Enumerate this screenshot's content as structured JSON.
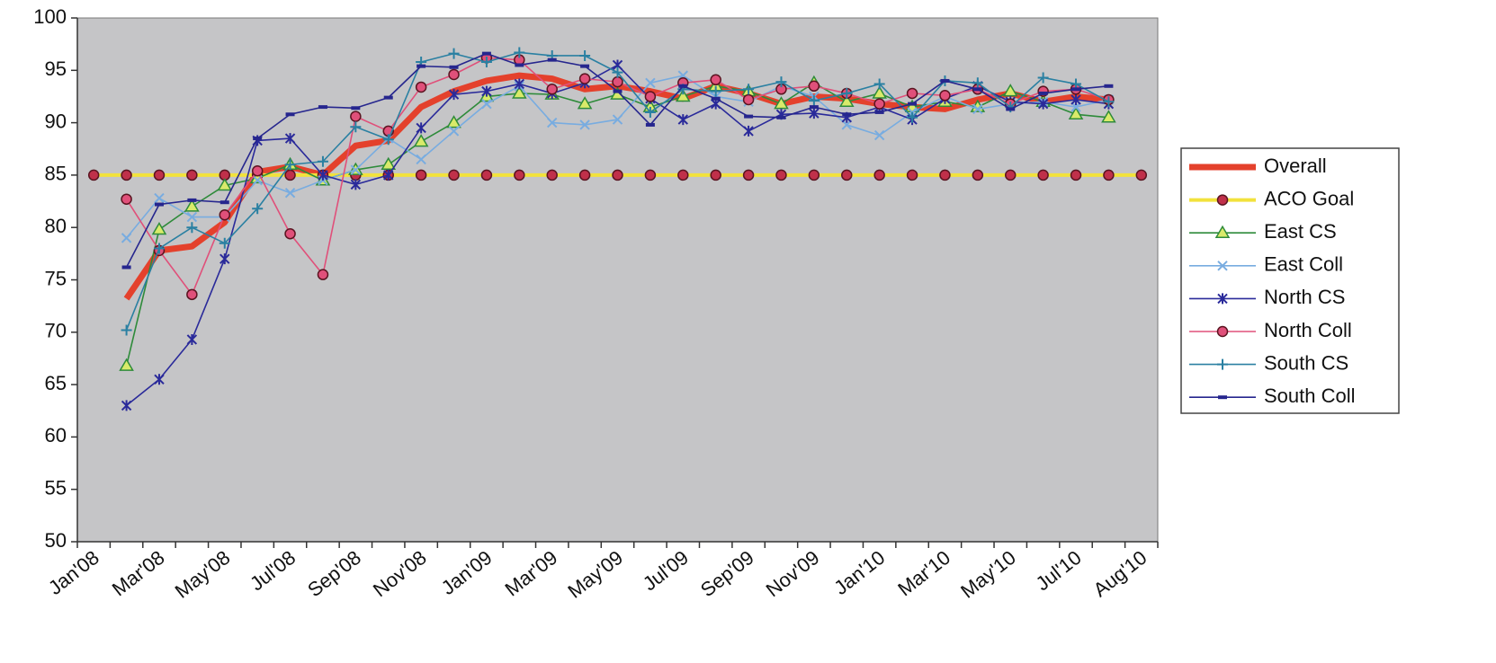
{
  "chart_data": {
    "type": "line",
    "categories": [
      "Jan'08",
      null,
      "Mar'08",
      null,
      "May'08",
      null,
      "Jul'08",
      null,
      "Sep'08",
      null,
      "Nov'08",
      null,
      "Jan'09",
      null,
      "Mar'09",
      null,
      "May'09",
      null,
      "Jul'09",
      null,
      "Sep'09",
      null,
      "Nov'09",
      null,
      "Jan'10",
      null,
      "Mar'10",
      null,
      "May'10",
      null,
      "Jul'10",
      null,
      "Aug'10"
    ],
    "ylim": [
      50,
      100
    ],
    "yticks": [
      50,
      55,
      60,
      65,
      70,
      75,
      80,
      85,
      90,
      95,
      100
    ],
    "legend": "right",
    "series": [
      {
        "name": "Overall",
        "color": "#e4412c",
        "marker": "none",
        "values": [
          null,
          73.2,
          77.8,
          78.2,
          80.5,
          85.3,
          85.8,
          85.0,
          87.8,
          88.3,
          91.5,
          93.0,
          94.0,
          94.5,
          94.2,
          93.2,
          93.5,
          93.0,
          92.3,
          93.5,
          92.8,
          91.8,
          92.5,
          92.3,
          91.8,
          91.5,
          91.3,
          92.2,
          92.8,
          92.0,
          92.5,
          92.2,
          null
        ]
      },
      {
        "name": "ACO Goal",
        "color": "#f2e23c",
        "marker": "circle",
        "values": [
          85,
          85,
          85,
          85,
          85,
          85,
          85,
          85,
          85,
          85,
          85,
          85,
          85,
          85,
          85,
          85,
          85,
          85,
          85,
          85,
          85,
          85,
          85,
          85,
          85,
          85,
          85,
          85,
          85,
          85,
          85,
          85,
          85
        ]
      },
      {
        "name": "East CS",
        "color": "#2e8b3a",
        "marker": "triangle",
        "values": [
          null,
          66.8,
          79.8,
          82.0,
          84.0,
          84.7,
          86.0,
          84.5,
          85.5,
          86.0,
          88.2,
          90.0,
          92.5,
          92.8,
          92.7,
          91.8,
          92.7,
          91.5,
          92.5,
          93.5,
          93.0,
          91.8,
          93.8,
          92.0,
          92.8,
          91.5,
          92.0,
          91.5,
          93.0,
          92.0,
          90.8,
          90.5,
          null
        ]
      },
      {
        "name": "East Coll",
        "color": "#78ace0",
        "marker": "x",
        "values": [
          null,
          79.0,
          82.8,
          81.0,
          81.0,
          84.5,
          83.3,
          84.5,
          85.5,
          88.5,
          86.5,
          89.2,
          91.8,
          93.5,
          90.0,
          89.8,
          90.3,
          93.8,
          94.5,
          92.5,
          92.0,
          93.5,
          92.5,
          89.8,
          88.8,
          91.0,
          92.5,
          91.3,
          91.8,
          92.0,
          91.5,
          92.2,
          null
        ]
      },
      {
        "name": "North CS",
        "color": "#2a2a9a",
        "marker": "star",
        "values": [
          null,
          63.0,
          65.5,
          69.3,
          77.0,
          88.3,
          88.5,
          85.0,
          84.1,
          85.0,
          89.5,
          92.7,
          93.0,
          93.7,
          92.8,
          93.8,
          95.5,
          92.3,
          90.3,
          91.8,
          89.2,
          90.8,
          90.9,
          90.5,
          91.5,
          90.3,
          92.3,
          93.5,
          92.0,
          91.8,
          92.2,
          91.8,
          null
        ]
      },
      {
        "name": "North Coll",
        "color": "#e0507a",
        "marker": "circle",
        "values": [
          null,
          82.7,
          77.8,
          73.6,
          81.2,
          85.4,
          79.4,
          75.5,
          90.6,
          89.2,
          93.4,
          94.6,
          96.2,
          96.0,
          93.2,
          94.2,
          93.9,
          92.5,
          93.8,
          94.1,
          92.2,
          93.2,
          93.5,
          92.8,
          91.8,
          92.8,
          92.6,
          93.2,
          91.8,
          93.0,
          93.2,
          92.2,
          null
        ]
      },
      {
        "name": "South CS",
        "color": "#2a80a2",
        "marker": "plus",
        "values": [
          null,
          70.2,
          78.0,
          80.0,
          78.5,
          81.8,
          86.0,
          86.3,
          89.6,
          88.4,
          95.8,
          96.6,
          95.8,
          96.7,
          96.4,
          96.4,
          94.8,
          91.0,
          93.2,
          93.0,
          93.2,
          93.9,
          92.1,
          92.8,
          93.7,
          90.5,
          94.0,
          93.8,
          91.5,
          94.3,
          93.7,
          92.0,
          null
        ]
      },
      {
        "name": "South Coll",
        "color": "#26268e",
        "marker": "dash",
        "values": [
          null,
          76.2,
          82.2,
          82.6,
          82.4,
          88.5,
          90.8,
          91.5,
          91.4,
          92.4,
          95.4,
          95.3,
          96.6,
          95.5,
          96.0,
          95.4,
          93.0,
          89.8,
          93.5,
          92.3,
          90.6,
          90.5,
          91.5,
          90.8,
          91.0,
          91.8,
          94.0,
          93.2,
          91.3,
          92.8,
          93.2,
          93.5,
          null
        ]
      }
    ]
  }
}
